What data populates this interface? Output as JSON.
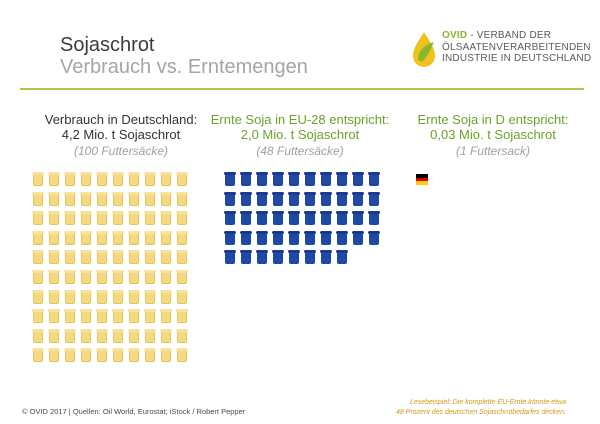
{
  "header": {
    "title": "Sojaschrot",
    "subtitle": "Verbrauch vs. Erntemengen"
  },
  "logo": {
    "brand": "OVID",
    "line1_rest": " - VERBAND DER",
    "line2": "ÖLSAATENVERARBEITENDEN",
    "line3": "INDUSTRIE IN DEUTSCHLAND",
    "icon": "oil-drop-leaf-icon"
  },
  "columns": [
    {
      "heading": "Verbrauch in Deutschland:",
      "amount": "4,2 Mio. t Sojaschrot",
      "note": "(100 Futtersäcke)",
      "count": 100,
      "icon": "feed-sack-icon"
    },
    {
      "heading": "Ernte Soja in EU-28 entspricht:",
      "amount": "2,0 Mio. t Sojaschrot",
      "note": "(48 Futtersäcke)",
      "count": 48,
      "icon": "feed-sack-icon"
    },
    {
      "heading": "Ernte Soja in D entspricht:",
      "amount": "0,03 Mio. t Sojaschrot",
      "note": "(1 Futtersack)",
      "count": 1,
      "icon": "germany-flag-icon"
    }
  ],
  "colors": {
    "accent_green": "#8ab82c",
    "rule": "#a6c94a",
    "sack_yellow": "#f4d97e",
    "sack_blue": "#1f48a7",
    "footnote": "#d39a14",
    "flag": [
      "#000000",
      "#dd0000",
      "#ffce00"
    ]
  },
  "footer": {
    "credits": "© OVID 2017  |  Quellen: Oil World, Eurostat; iStock / Robert Pepper",
    "note_line1": "Lesebeispiel: Die komplette EU-Ernte könnte etwa",
    "note_line2": "48 Prozent des deutschen Sojaschrotbedarfes decken."
  }
}
